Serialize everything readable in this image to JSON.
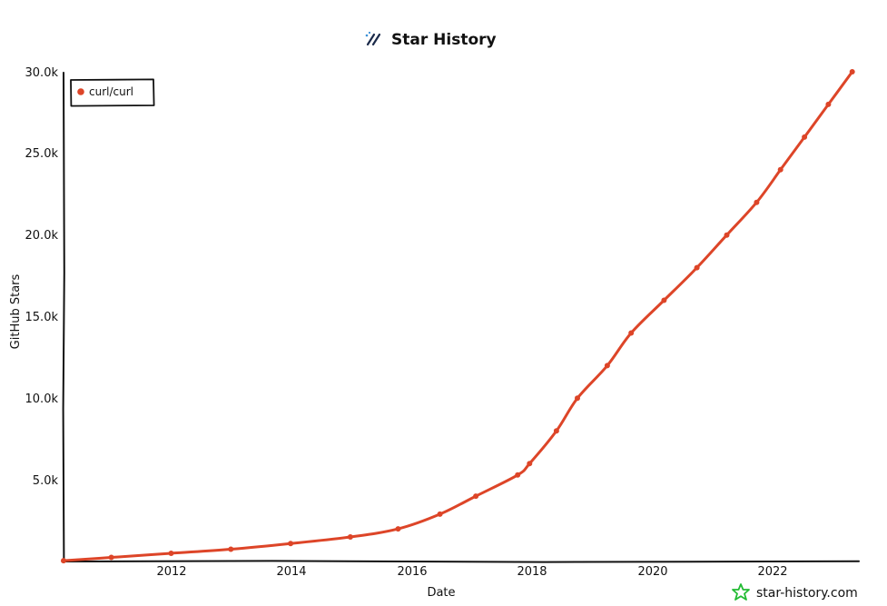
{
  "chart_data": {
    "type": "line",
    "title": "Star History",
    "title_icon": "sparkle-slash-icon",
    "xlabel": "Date",
    "ylabel": "GitHub Stars",
    "x_tick_labels": [
      "2012",
      "2014",
      "2016",
      "2018",
      "2020",
      "2022"
    ],
    "y_tick_labels": [
      "5.0k",
      "10.0k",
      "15.0k",
      "20.0k",
      "25.0k",
      "30.0k"
    ],
    "x_ticks": [
      2012,
      2014,
      2016,
      2018,
      2020,
      2022
    ],
    "y_ticks": [
      5000,
      10000,
      15000,
      20000,
      25000,
      30000
    ],
    "xlim": [
      2010.2,
      2023.45
    ],
    "ylim": [
      0,
      30000
    ],
    "grid": false,
    "legend_position": "top-left",
    "series": [
      {
        "name": "curl/curl",
        "color": "#dd4528",
        "x": [
          2010.2,
          2011.0,
          2012.0,
          2013.0,
          2014.0,
          2015.0,
          2015.8,
          2016.5,
          2017.1,
          2017.8,
          2018.0,
          2018.45,
          2018.8,
          2019.3,
          2019.7,
          2020.25,
          2020.8,
          2021.3,
          2021.8,
          2022.2,
          2022.6,
          2023.0,
          2023.4
        ],
        "y": [
          50,
          250,
          500,
          750,
          1100,
          1500,
          2000,
          2900,
          4000,
          5300,
          6000,
          8000,
          10000,
          12000,
          14000,
          16000,
          18000,
          20000,
          22000,
          24000,
          26000,
          28000,
          30000
        ]
      }
    ]
  },
  "watermark": {
    "text": "star-history.com",
    "icon": "star-history-logo-icon",
    "color": "#22bb33"
  }
}
